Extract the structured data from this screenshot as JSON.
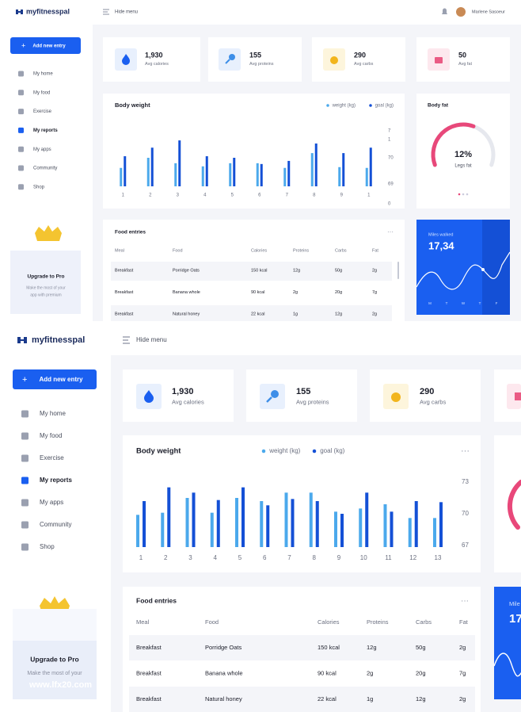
{
  "top": {
    "brand": "myfitnesspal",
    "hide_menu": "Hide menu",
    "user": "Marlene Sasoeur",
    "add_entry": "Add new entry",
    "nav": [
      "My home",
      "My food",
      "Exercise",
      "My reports",
      "My apps",
      "Community",
      "Shop"
    ],
    "upgrade": {
      "title": "Upgrade to Pro",
      "text": [
        "Make the most of your",
        "app with premium"
      ]
    },
    "stats": [
      {
        "value": "1,930",
        "label": "Avg calories"
      },
      {
        "value": 155,
        "label": "Avg proteins"
      },
      {
        "value": 290,
        "label": "Avg carbs"
      },
      {
        "value": 50,
        "label": "Avg fat"
      }
    ],
    "weight_chart": {
      "type": "bar",
      "title": "Body weight",
      "categories": [
        "1",
        "2",
        "3",
        "4",
        "5",
        "6",
        "7",
        "8",
        "9",
        "1"
      ],
      "series": [
        {
          "name": "weight (kg)",
          "color": "#4ba9ec",
          "values": [
            69.61,
            70.0,
            69.79,
            69.67,
            69.79,
            69.79,
            69.61,
            70.18,
            69.64,
            69.61
          ]
        },
        {
          "name": "goal (kg)",
          "color": "#1450d6",
          "values": [
            70.06,
            70.39,
            70.67,
            70.06,
            70.0,
            69.76,
            69.88,
            70.55,
            70.18,
            70.39
          ]
        }
      ],
      "ylim": [
        68.9,
        71.1
      ],
      "yticks": [
        {
          "value": 71.04,
          "label": "7"
        },
        {
          "value": 70.7,
          "label": "1"
        },
        70,
        69,
        {
          "value": 68.23,
          "label": "0"
        }
      ]
    },
    "body_fat": {
      "title": "Body fat",
      "value": "12%",
      "label": "Legs fat"
    },
    "food": {
      "title": "Food entries",
      "more": "···",
      "columns": [
        "Meal",
        "Food",
        "Calories",
        "Proteins",
        "Carbs",
        "Fat"
      ],
      "rows": [
        [
          "Breakfast",
          "Porridge Oats",
          "150 kcal",
          "12g",
          "50g",
          "2g"
        ],
        [
          "Breakfast",
          "Banana whole",
          "90 kcal",
          "2g",
          "20g",
          "7g"
        ],
        [
          "Breakfast",
          "Natural honey",
          "22 kcal",
          "1g",
          "12g",
          "2g"
        ]
      ]
    },
    "miles": {
      "title": "Miles walked",
      "value": "17,34",
      "days": [
        "M",
        "T",
        "W",
        "T",
        "F"
      ]
    }
  },
  "bottom": {
    "brand": "myfitnesspal",
    "hide_menu": "Hide menu",
    "add_entry": "Add new entry",
    "nav": [
      "My home",
      "My food",
      "Exercise",
      "My reports",
      "My apps",
      "Community",
      "Shop"
    ],
    "upgrade": {
      "title": "Upgrade to Pro",
      "text": [
        "Make the most of your"
      ]
    },
    "watermark": "www.lfx20.com",
    "stats": [
      {
        "value": "1,930",
        "label": "Avg calories"
      },
      {
        "value": 155,
        "label": "Avg proteins"
      },
      {
        "value": 290,
        "label": "Avg carbs"
      }
    ],
    "weight_chart": {
      "type": "bar",
      "title": "Body weight",
      "more": "···",
      "categories": [
        "1",
        "2",
        "3",
        "4",
        "5",
        "6",
        "7",
        "8",
        "9",
        "10",
        "11",
        "12",
        "13"
      ],
      "series": [
        {
          "name": "weight (kg)",
          "color": "#4ba9ec",
          "values": [
            69.9,
            70.1,
            71.5,
            70.1,
            71.5,
            71.2,
            72.0,
            72.0,
            70.2,
            70.5,
            70.9,
            69.6,
            69.6
          ]
        },
        {
          "name": "goal (kg)",
          "color": "#1450d6",
          "values": [
            71.2,
            72.5,
            72.0,
            71.3,
            72.5,
            70.8,
            71.4,
            71.2,
            70.0,
            72.0,
            70.2,
            71.2,
            71.1
          ]
        }
      ],
      "ylim": [
        66.85,
        73.6
      ],
      "yticks": [
        73,
        70,
        67
      ]
    },
    "food": {
      "title": "Food entries",
      "more": "···",
      "columns": [
        "Meal",
        "Food",
        "Calories",
        "Proteins",
        "Carbs",
        "Fat"
      ],
      "rows": [
        [
          "Breakfast",
          "Porridge Oats",
          "150 kcal",
          "12g",
          "50g",
          "2g"
        ],
        [
          "Breakfast",
          "Banana whole",
          "90 kcal",
          "2g",
          "20g",
          "7g"
        ],
        [
          "Breakfast",
          "Natural honey",
          "22 kcal",
          "1g",
          "12g",
          "2g"
        ]
      ]
    },
    "miles": {
      "title": "Mile",
      "value": "17"
    }
  }
}
